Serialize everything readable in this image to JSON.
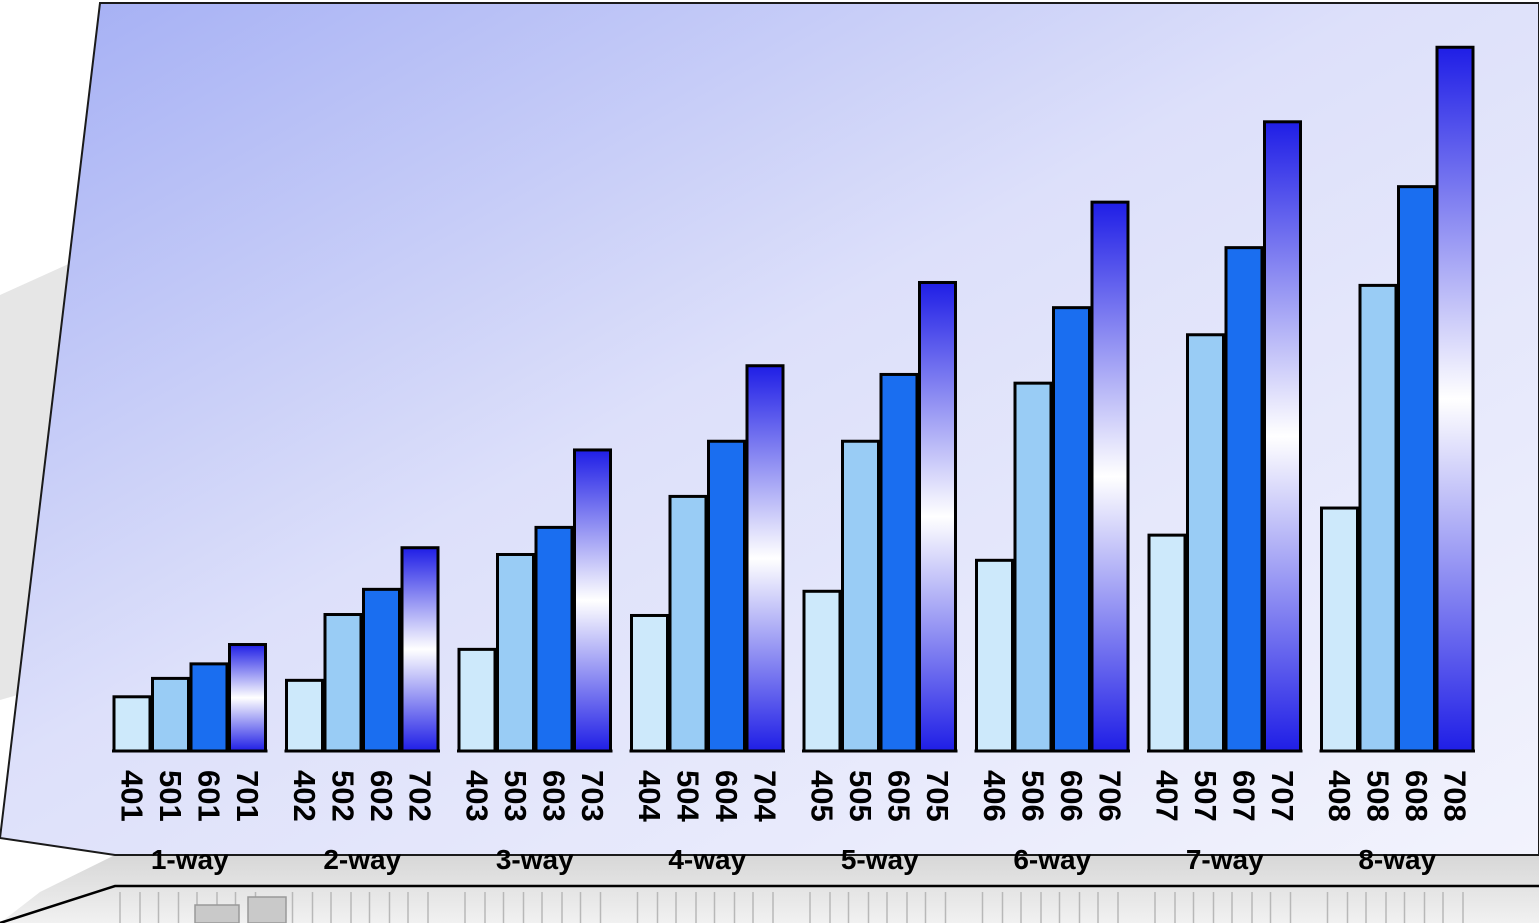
{
  "chart_data": {
    "type": "bar",
    "groups": [
      {
        "label": "1-way",
        "bars": [
          {
            "label": "401",
            "value": 56
          },
          {
            "label": "501",
            "value": 75
          },
          {
            "label": "601",
            "value": 90
          },
          {
            "label": "701",
            "value": 110
          }
        ]
      },
      {
        "label": "2-way",
        "bars": [
          {
            "label": "402",
            "value": 73
          },
          {
            "label": "502",
            "value": 141
          },
          {
            "label": "602",
            "value": 167
          },
          {
            "label": "702",
            "value": 210
          }
        ]
      },
      {
        "label": "3-way",
        "bars": [
          {
            "label": "403",
            "value": 105
          },
          {
            "label": "503",
            "value": 203
          },
          {
            "label": "603",
            "value": 231
          },
          {
            "label": "703",
            "value": 311
          }
        ]
      },
      {
        "label": "4-way",
        "bars": [
          {
            "label": "404",
            "value": 140
          },
          {
            "label": "504",
            "value": 263
          },
          {
            "label": "604",
            "value": 320
          },
          {
            "label": "704",
            "value": 398
          }
        ]
      },
      {
        "label": "5-way",
        "bars": [
          {
            "label": "405",
            "value": 165
          },
          {
            "label": "505",
            "value": 320
          },
          {
            "label": "605",
            "value": 389
          },
          {
            "label": "705",
            "value": 484
          }
        ]
      },
      {
        "label": "6-way",
        "bars": [
          {
            "label": "406",
            "value": 197
          },
          {
            "label": "506",
            "value": 380
          },
          {
            "label": "606",
            "value": 458
          },
          {
            "label": "706",
            "value": 567
          }
        ]
      },
      {
        "label": "7-way",
        "bars": [
          {
            "label": "407",
            "value": 223
          },
          {
            "label": "507",
            "value": 430
          },
          {
            "label": "607",
            "value": 520
          },
          {
            "label": "707",
            "value": 650
          }
        ]
      },
      {
        "label": "8-way",
        "bars": [
          {
            "label": "408",
            "value": 251
          },
          {
            "label": "508",
            "value": 481
          },
          {
            "label": "608",
            "value": 583
          },
          {
            "label": "708",
            "value": 727
          }
        ]
      }
    ],
    "ylim": [
      0,
      750
    ],
    "grid": false,
    "legend": "none",
    "colors": {
      "series1": "#cde9fb",
      "series2": "#99ccf5",
      "series3": "#1a6ef0",
      "series4_edge": "#1f1ee6",
      "series4_center": "#ffffff",
      "panel_top_left": "#a3aef4",
      "panel_bottom_right": "#f2f3fd",
      "outline": "#000000"
    }
  }
}
